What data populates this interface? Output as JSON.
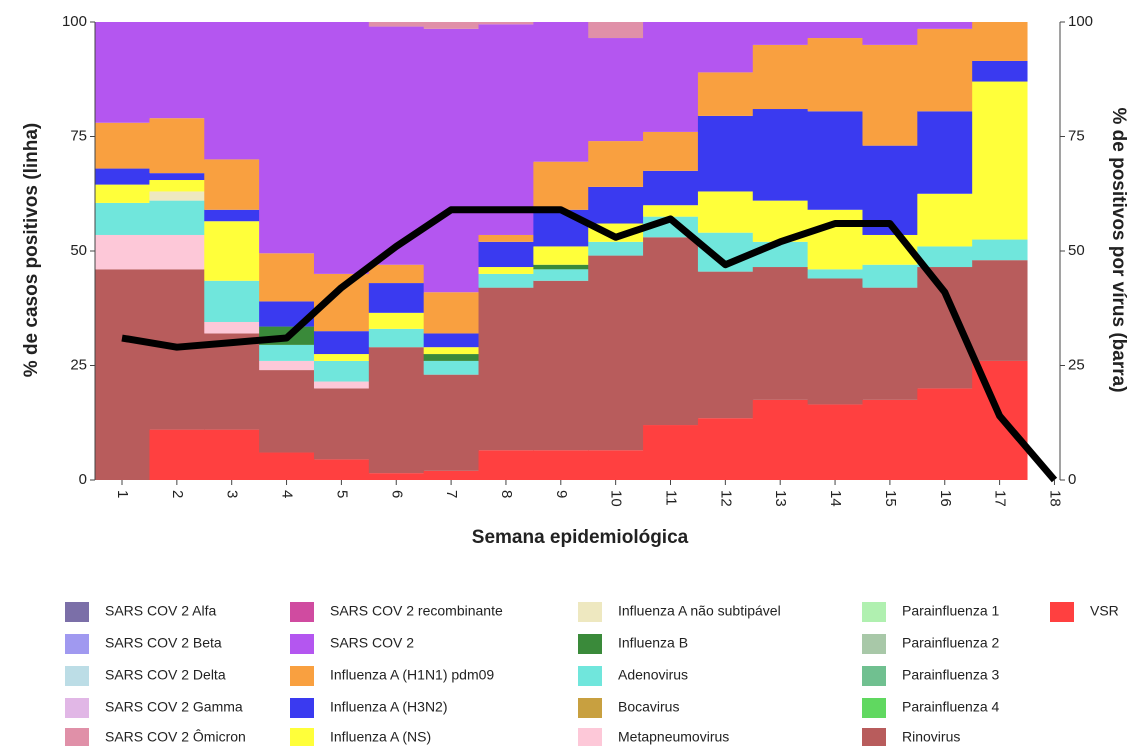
{
  "chart_data": {
    "type": "bar",
    "categories": [
      "1",
      "2",
      "3",
      "4",
      "5",
      "6",
      "7",
      "8",
      "9",
      "10",
      "11",
      "12",
      "13",
      "14",
      "15",
      "16",
      "17",
      "18"
    ],
    "xlabel": "Semana epidemiológica",
    "ylabel": "% de casos positivos (linha)",
    "y2label": "% de positivos por vírus (barra)",
    "ylim": [
      0,
      100
    ],
    "yticks": [
      0,
      25,
      50,
      75,
      100
    ],
    "y2lim": [
      0,
      100
    ],
    "y2ticks": [
      0,
      25,
      50,
      75,
      100
    ],
    "line": {
      "color": "#000000",
      "values": [
        31,
        29,
        30,
        31,
        42,
        51,
        59,
        59,
        59,
        53,
        57,
        47,
        52,
        56,
        56,
        41,
        14,
        0
      ]
    },
    "series": [
      {
        "name": "SARS COV 2 Alfa",
        "color": "#7b6fa8",
        "axis": "y2",
        "values": [
          0,
          0,
          0,
          0,
          0,
          0,
          0,
          0,
          0,
          0,
          0,
          0,
          0,
          0,
          0,
          0,
          0,
          0
        ]
      },
      {
        "name": "SARS COV 2 Beta",
        "color": "#a099f0",
        "axis": "y2",
        "values": [
          0,
          0,
          0,
          0,
          0,
          0,
          0,
          0,
          0,
          0,
          0,
          0,
          0,
          0,
          0,
          0,
          0,
          0
        ]
      },
      {
        "name": "SARS COV 2 Delta",
        "color": "#bcdde6",
        "axis": "y2",
        "values": [
          0,
          0,
          0,
          0,
          0,
          0,
          0,
          0,
          0,
          0,
          0,
          0,
          0,
          0,
          0,
          0,
          0,
          0
        ]
      },
      {
        "name": "SARS COV 2 Gamma",
        "color": "#e1b7e6",
        "axis": "y2",
        "values": [
          0,
          0,
          0,
          0,
          0,
          0,
          0,
          0,
          0,
          0,
          0,
          0,
          0,
          0,
          0,
          0,
          0,
          0
        ]
      },
      {
        "name": "SARS COV 2 Ômicron",
        "color": "#e090a8",
        "axis": "y2",
        "values": [
          0,
          0,
          0,
          0,
          0,
          1,
          1.5,
          0.5,
          0,
          3.5,
          0,
          0,
          0,
          0,
          0,
          0,
          0,
          0
        ]
      },
      {
        "name": "SARS COV 2 recombinante",
        "color": "#d04ba0",
        "axis": "y2",
        "values": [
          0,
          0,
          0,
          0,
          0,
          0,
          0,
          0,
          0,
          0,
          0,
          0,
          0,
          0,
          0,
          0,
          0,
          0
        ]
      },
      {
        "name": "SARS COV 2",
        "color": "#b456f0",
        "axis": "y2",
        "values": [
          22,
          21,
          30,
          50.5,
          55,
          52,
          57.5,
          46,
          30.5,
          22.5,
          24,
          11,
          5,
          3.5,
          5,
          1.5,
          0,
          0
        ]
      },
      {
        "name": "Influenza A (H1N1) pdm09",
        "color": "#f9a040",
        "axis": "y2",
        "values": [
          10,
          12,
          11,
          10.5,
          12.5,
          4,
          9,
          1.5,
          10.5,
          10,
          8.5,
          9.5,
          14,
          16,
          22,
          18,
          8.5,
          0
        ]
      },
      {
        "name": "Influenza A (H3N2)",
        "color": "#3a3af0",
        "axis": "y2",
        "values": [
          3.5,
          1.5,
          2.5,
          5.5,
          5,
          6.5,
          3,
          5.5,
          8,
          8,
          7.5,
          16.5,
          20,
          21.5,
          19.5,
          18,
          4.5,
          0
        ]
      },
      {
        "name": "Influenza A (NS)",
        "color": "#ffff3a",
        "axis": "y2",
        "values": [
          4,
          2.5,
          13,
          0,
          1.5,
          3.5,
          1.5,
          1.5,
          4,
          4,
          2.5,
          9,
          9,
          13,
          6.5,
          11.5,
          34.5,
          0
        ]
      },
      {
        "name": "Influenza A não subtipável",
        "color": "#eee8c0",
        "axis": "y2",
        "values": [
          0,
          2,
          0,
          0,
          0,
          0,
          0,
          0,
          0,
          0,
          0,
          0,
          0,
          0,
          0,
          0,
          0,
          0
        ]
      },
      {
        "name": "Influenza B",
        "color": "#3a8a3a",
        "axis": "y2",
        "values": [
          0,
          0,
          0,
          4,
          0,
          0,
          1.5,
          0,
          1,
          0,
          0,
          0,
          0,
          0,
          0,
          0,
          0,
          0
        ]
      },
      {
        "name": "Adenovirus",
        "color": "#70e6dc",
        "axis": "y2",
        "values": [
          7,
          7.5,
          9,
          3.5,
          4.5,
          4,
          3,
          3,
          2.5,
          3,
          4.5,
          8.5,
          5.5,
          2,
          5,
          4.5,
          4.5,
          0
        ]
      },
      {
        "name": "Bocavirus",
        "color": "#c8a040",
        "axis": "y2",
        "values": [
          0,
          0,
          0,
          0,
          0,
          0,
          0,
          0,
          0,
          0,
          0,
          0,
          0,
          0,
          0,
          0,
          0,
          0
        ]
      },
      {
        "name": "Metapneumovirus",
        "color": "#fdc8d8",
        "axis": "y2",
        "values": [
          7.5,
          7.5,
          2.5,
          2,
          1.5,
          0,
          0,
          0,
          0,
          0,
          0,
          0,
          0,
          0,
          0,
          0,
          0,
          0
        ]
      },
      {
        "name": "Parainfluenza 1",
        "color": "#b0f0b0",
        "axis": "y2",
        "values": [
          0,
          0,
          0,
          0,
          0,
          0,
          0,
          0,
          0,
          0,
          0,
          0,
          0,
          0,
          0,
          0,
          0,
          0
        ]
      },
      {
        "name": "Parainfluenza 2",
        "color": "#a8c8a8",
        "axis": "y2",
        "values": [
          0,
          0,
          0,
          0,
          0,
          0,
          0,
          0,
          0,
          0,
          0,
          0,
          0,
          0,
          0,
          0,
          0,
          0
        ]
      },
      {
        "name": "Parainfluenza 3",
        "color": "#70c090",
        "axis": "y2",
        "values": [
          0,
          0,
          0,
          0,
          0,
          0,
          0,
          0,
          0,
          0,
          0,
          0,
          0,
          0,
          0,
          0,
          0,
          0
        ]
      },
      {
        "name": "Parainfluenza 4",
        "color": "#60d860",
        "axis": "y2",
        "values": [
          0,
          0,
          0,
          0,
          0,
          0,
          0,
          0,
          0,
          0,
          0,
          0,
          0,
          0,
          0,
          0,
          0,
          0
        ]
      },
      {
        "name": "Rinovirus",
        "color": "#b85c5c",
        "axis": "y2",
        "values": [
          46,
          35,
          21,
          18,
          15.5,
          27.5,
          21,
          35.5,
          37,
          42.5,
          41,
          32,
          29,
          27.5,
          24.5,
          26.5,
          22,
          0
        ]
      },
      {
        "name": "VSR",
        "color": "#ff4040",
        "axis": "y2",
        "values": [
          0,
          11,
          11,
          6,
          4.5,
          1.5,
          2,
          6.5,
          6.5,
          6.5,
          12,
          13.5,
          17.5,
          16.5,
          17.5,
          20,
          26,
          0
        ]
      }
    ]
  }
}
